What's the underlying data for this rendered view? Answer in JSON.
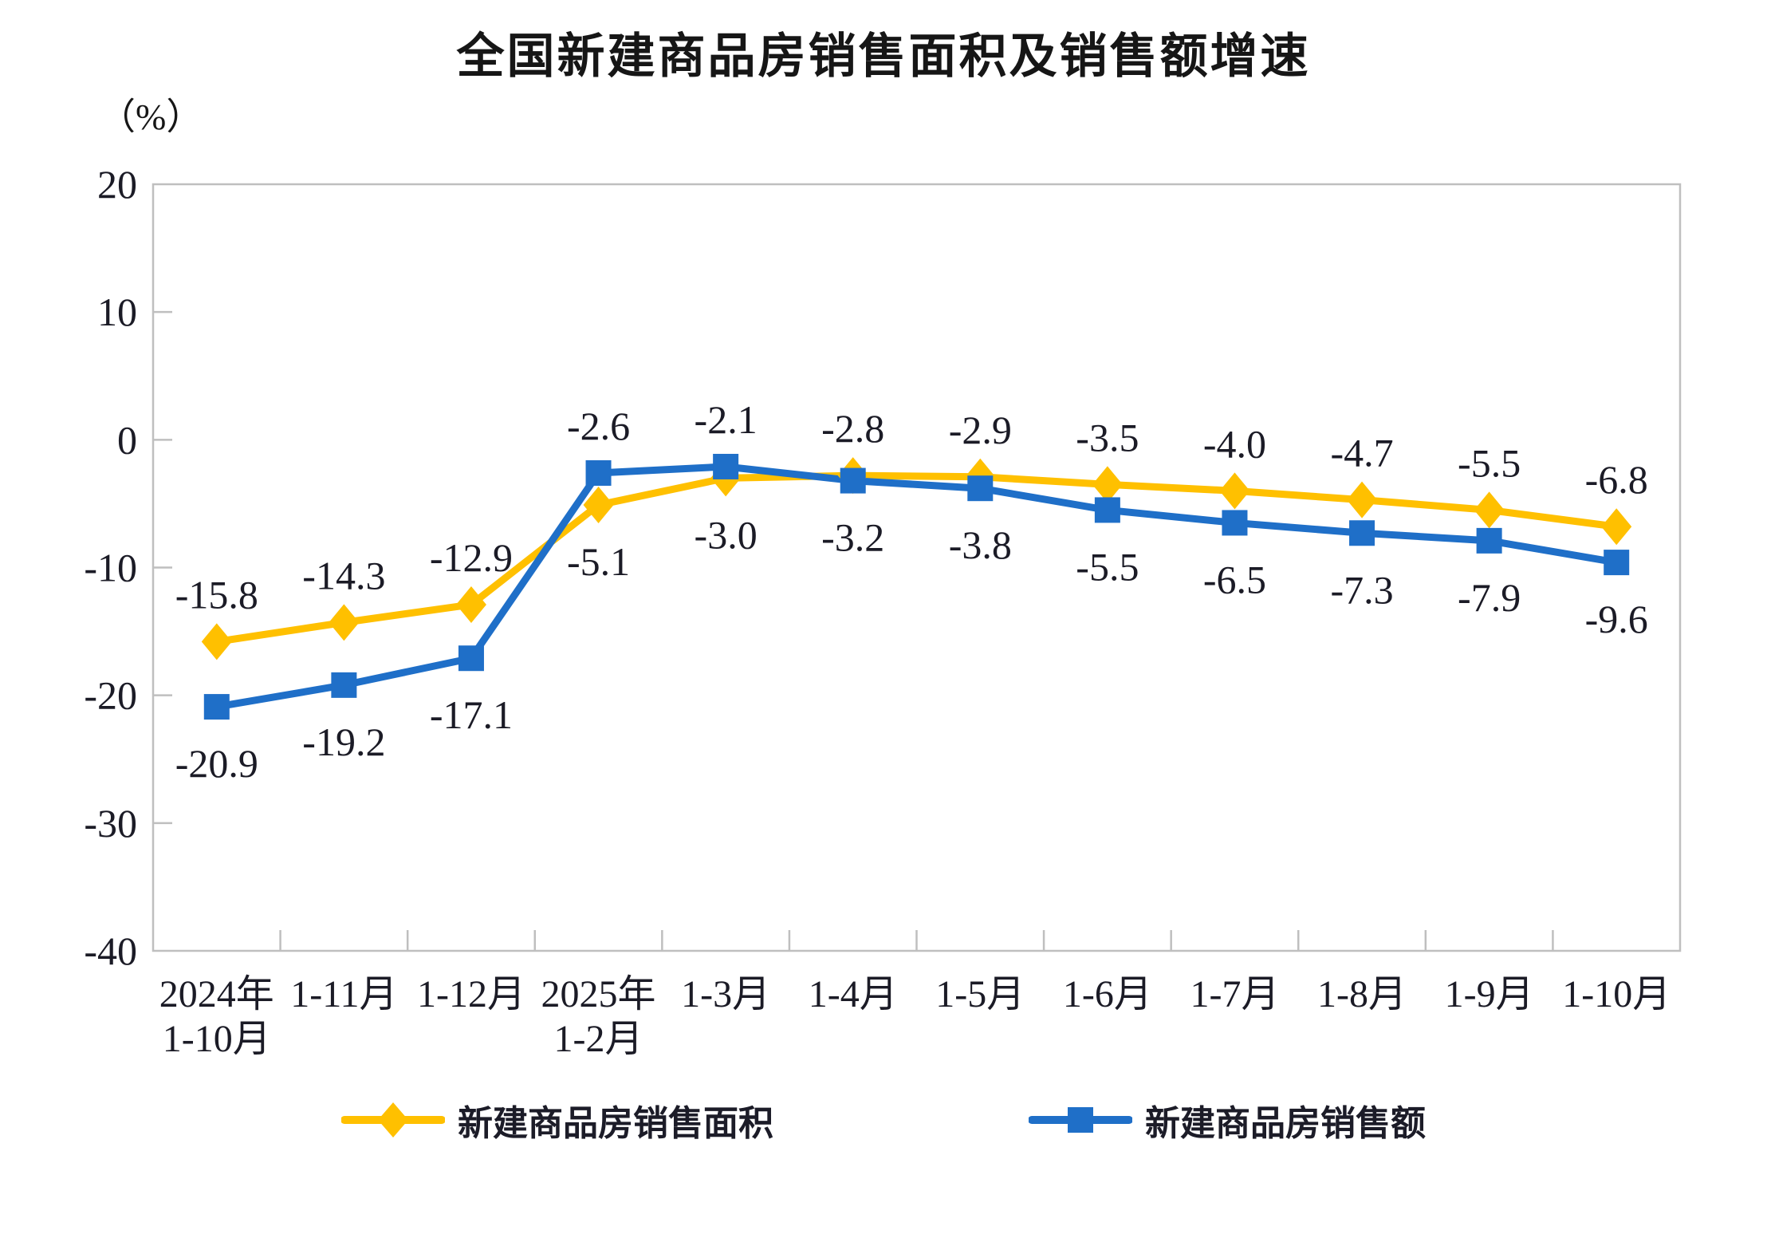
{
  "title": "全国新建商品房销售面积及销售额增速",
  "y_axis_unit": "（%）",
  "colors": {
    "area_series": "#FFC000",
    "value_series": "#1F6FC8",
    "axis_frame": "#BFBFBF",
    "label_text": "#1b1b26"
  },
  "chart_data": {
    "type": "line",
    "title": "全国新建商品房销售面积及销售额增速",
    "ylabel": "（%）",
    "categories": [
      [
        "2024年",
        "1-10月"
      ],
      [
        "1-11月"
      ],
      [
        "1-12月"
      ],
      [
        "2025年",
        "1-2月"
      ],
      [
        "1-3月"
      ],
      [
        "1-4月"
      ],
      [
        "1-5月"
      ],
      [
        "1-6月"
      ],
      [
        "1-7月"
      ],
      [
        "1-8月"
      ],
      [
        "1-9月"
      ],
      [
        "1-10月"
      ]
    ],
    "series": [
      {
        "name": "新建商品房销售面积",
        "color": "#FFC000",
        "marker": "diamond",
        "values": [
          -15.8,
          -14.3,
          -12.9,
          -5.1,
          -3.0,
          -2.8,
          -2.9,
          -3.5,
          -4.0,
          -4.7,
          -5.5,
          -6.8
        ]
      },
      {
        "name": "新建商品房销售额",
        "color": "#1F6FC8",
        "marker": "square",
        "values": [
          -20.9,
          -19.2,
          -17.1,
          -2.6,
          -2.1,
          -3.2,
          -3.8,
          -5.5,
          -6.5,
          -7.3,
          -7.9,
          -9.6
        ]
      }
    ],
    "ylim": [
      -40,
      20
    ],
    "yticks": [
      20,
      10,
      0,
      -10,
      -20,
      -30,
      -40
    ],
    "grid": false,
    "data_labels": true,
    "legend_position": "bottom"
  }
}
